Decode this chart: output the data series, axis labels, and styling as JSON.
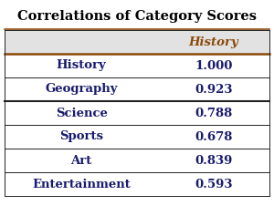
{
  "title": "Correlations of Category Scores",
  "header": [
    "",
    "History"
  ],
  "rows": [
    [
      "History",
      "1.000"
    ],
    [
      "Geography",
      "0.923"
    ],
    [
      "Science",
      "0.788"
    ],
    [
      "Sports",
      "0.678"
    ],
    [
      "Art",
      "0.839"
    ],
    [
      "Entertainment",
      "0.593"
    ]
  ],
  "header_bg_color": "#E2E2E2",
  "header_text_color": "#8B4A0A",
  "row_text_color": "#1a1a6e",
  "title_color": "#000000",
  "bg_color": "#FFFFFF",
  "border_color": "#222222",
  "header_top_border_color": "#8B4A0A",
  "header_bottom_border_color": "#8B4A0A",
  "thick_row_after": 1,
  "title_fontsize": 10.5,
  "cell_fontsize": 9.5
}
